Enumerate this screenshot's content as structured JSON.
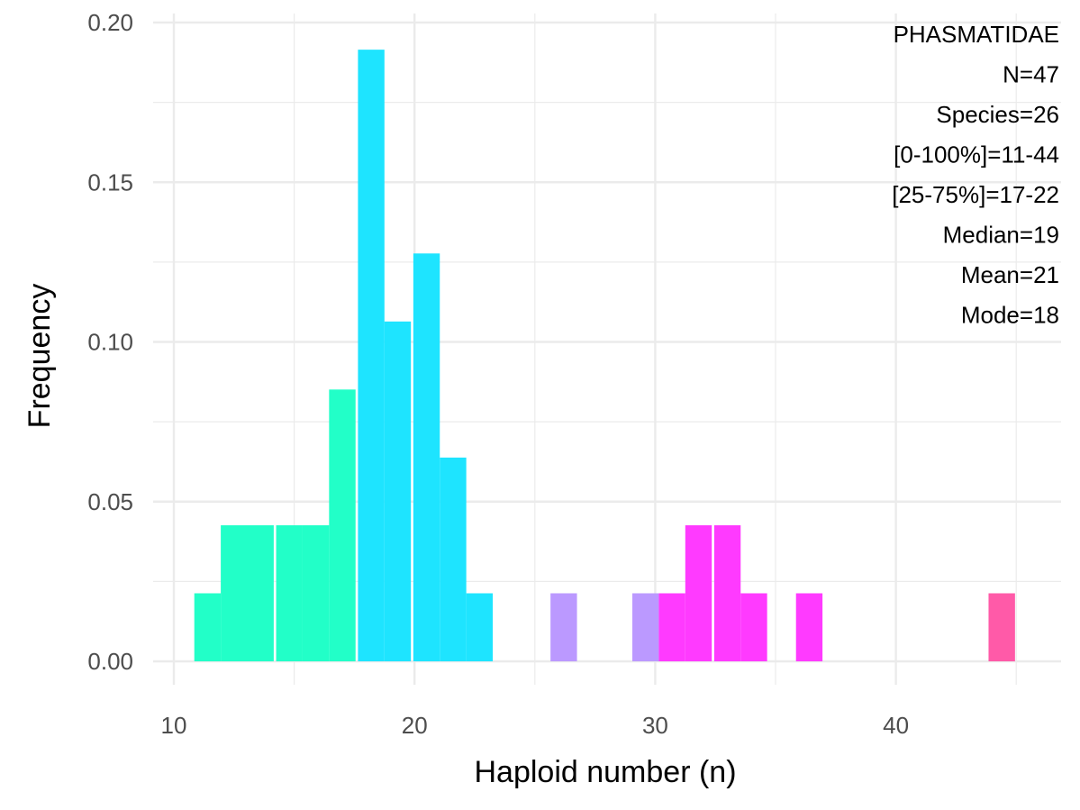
{
  "chart_data": {
    "type": "bar",
    "subtype": "histogram",
    "title": "",
    "xlabel": "Haploid number (n)",
    "ylabel": "Frequency",
    "xlim": [
      10,
      45.5
    ],
    "ylim": [
      0,
      0.2
    ],
    "x_ticks": [
      10,
      20,
      30,
      40
    ],
    "y_ticks": [
      0.0,
      0.05,
      0.1,
      0.15,
      0.2
    ],
    "x_tick_labels": [
      "10",
      "20",
      "30",
      "40"
    ],
    "y_tick_labels": [
      "0.00",
      "0.05",
      "0.10",
      "0.15",
      "0.20"
    ],
    "bin_width": 1.1,
    "grid": true,
    "bars": [
      {
        "x": 11.4,
        "value": 0.0213,
        "color": "#22ffc8"
      },
      {
        "x": 12.5,
        "value": 0.0426,
        "color": "#22ffc8"
      },
      {
        "x": 13.6,
        "value": 0.0426,
        "color": "#22ffc8"
      },
      {
        "x": 14.8,
        "value": 0.0426,
        "color": "#22ffc8"
      },
      {
        "x": 15.9,
        "value": 0.0426,
        "color": "#22ffc8"
      },
      {
        "x": 17.0,
        "value": 0.0851,
        "color": "#22ffc8"
      },
      {
        "x": 18.2,
        "value": 0.1915,
        "color": "#1ee4ff"
      },
      {
        "x": 19.3,
        "value": 0.1064,
        "color": "#1ee4ff"
      },
      {
        "x": 20.5,
        "value": 0.1277,
        "color": "#1ee4ff"
      },
      {
        "x": 21.6,
        "value": 0.0638,
        "color": "#1ee4ff"
      },
      {
        "x": 22.7,
        "value": 0.0213,
        "color": "#1ee4ff"
      },
      {
        "x": 26.2,
        "value": 0.0213,
        "color": "#bb99ff"
      },
      {
        "x": 29.6,
        "value": 0.0213,
        "color": "#bb99ff"
      },
      {
        "x": 30.7,
        "value": 0.0213,
        "color": "#ff3aff"
      },
      {
        "x": 31.8,
        "value": 0.0426,
        "color": "#ff3aff"
      },
      {
        "x": 33.0,
        "value": 0.0426,
        "color": "#ff3aff"
      },
      {
        "x": 34.1,
        "value": 0.0213,
        "color": "#ff3aff"
      },
      {
        "x": 36.4,
        "value": 0.0213,
        "color": "#ff3aff"
      },
      {
        "x": 44.4,
        "value": 0.0213,
        "color": "#ff5aa8"
      }
    ],
    "annotations": [
      "PHASMATIDAE",
      "N=47",
      "Species=26",
      "[0-100%]=11-44",
      "[25-75%]=17-22",
      "Median=19",
      "Mean=21",
      "Mode=18"
    ]
  }
}
